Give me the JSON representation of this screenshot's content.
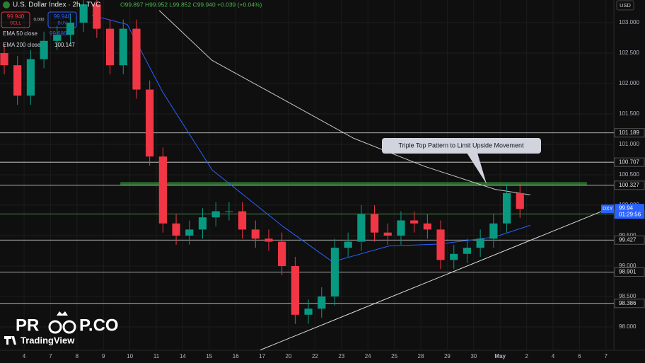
{
  "header": {
    "symbol": "U.S. Dollar Index · 2h · TVC",
    "ohlc": "O99.897 H99.952 L99.852 C99.940 +0.039 (+0.04%)",
    "sell_price": "99.940",
    "sell": "SELL",
    "buy_price": "99.940",
    "buy": "BUY",
    "spread": "0.000",
    "ema50_label": "EMA 50 close",
    "ema50_value": "99.686",
    "ema200_label": "EMA 200 close",
    "ema200_value": "100.147",
    "currency": "USD",
    "ticker": "DXY",
    "countdown": "01:29:56",
    "logo_left": "PR",
    "logo_right": "P.CO",
    "brand": "TradingView"
  },
  "chart_data": {
    "type": "candlestick",
    "annotation": "Triple Top Pattern to Limit Upside Movement",
    "up_color": "#089981",
    "down_color": "#f23645",
    "x": [
      -0.75,
      -0.25,
      0.25,
      0.75,
      1.25,
      1.75,
      2.25,
      2.75,
      3.25,
      3.75,
      4.25,
      4.75,
      5.25,
      5.75,
      6.25,
      6.75,
      7.25,
      7.75,
      8.25,
      8.75,
      9.25,
      9.75,
      10.25,
      10.75,
      11.25,
      11.75,
      12.25,
      12.75,
      13.25,
      13.75,
      14.25,
      14.75,
      15.25,
      15.75,
      16.25,
      16.75,
      17.25,
      17.75,
      18.25,
      18.75
    ],
    "open": [
      102.5,
      102.3,
      101.8,
      102.4,
      102.7,
      102.8,
      103.0,
      103.3,
      102.9,
      102.3,
      102.9,
      101.9,
      100.8,
      99.7,
      99.5,
      99.6,
      99.8,
      99.9,
      99.9,
      99.6,
      99.45,
      99.4,
      99.0,
      98.2,
      98.3,
      98.5,
      99.3,
      99.4,
      99.85,
      99.55,
      99.5,
      99.75,
      99.7,
      99.6,
      99.1,
      99.2,
      99.3,
      99.45,
      99.7,
      100.2
    ],
    "high": [
      102.65,
      102.45,
      102.55,
      102.85,
      102.95,
      103.15,
      103.45,
      103.45,
      103.05,
      103.05,
      103.05,
      102.05,
      100.95,
      99.85,
      99.75,
      99.95,
      100.05,
      100.05,
      100.05,
      99.75,
      99.6,
      99.55,
      99.15,
      98.45,
      98.65,
      99.45,
      99.55,
      100.0,
      100.0,
      99.7,
      99.9,
      99.9,
      99.85,
      99.75,
      99.35,
      99.45,
      99.6,
      99.85,
      100.35,
      100.35
    ],
    "low": [
      102.15,
      101.65,
      101.65,
      102.25,
      102.55,
      102.65,
      102.85,
      102.75,
      102.15,
      102.15,
      101.75,
      100.65,
      99.55,
      99.35,
      99.35,
      99.45,
      99.65,
      99.75,
      99.45,
      99.3,
      99.25,
      98.85,
      98.05,
      98.05,
      98.15,
      98.35,
      99.15,
      99.25,
      99.4,
      99.35,
      99.35,
      99.55,
      99.45,
      98.95,
      98.95,
      99.05,
      99.15,
      99.3,
      99.55,
      99.79
    ],
    "close": [
      102.3,
      101.8,
      102.4,
      102.7,
      102.8,
      103.0,
      103.3,
      102.9,
      102.3,
      102.9,
      101.9,
      100.8,
      99.7,
      99.5,
      99.6,
      99.8,
      99.9,
      99.9,
      99.6,
      99.45,
      99.4,
      99.0,
      98.2,
      98.3,
      98.5,
      99.3,
      99.4,
      99.85,
      99.55,
      99.5,
      99.75,
      99.7,
      99.6,
      99.1,
      99.2,
      99.3,
      99.45,
      99.7,
      100.2,
      99.94
    ],
    "series": [
      {
        "name": "EMA 50 close",
        "color": "#2962ff",
        "x": [
          2.57,
          3.9,
          5.24,
          7.11,
          9.79,
          11.66,
          13.8,
          15.67,
          17.81,
          19.14
        ],
        "values": [
          103.12,
          102.97,
          101.86,
          100.58,
          99.65,
          99.07,
          99.33,
          99.36,
          99.48,
          99.67
        ]
      },
      {
        "name": "EMA 200 close",
        "color": "#c8c8c8",
        "x": [
          5.11,
          7.11,
          9.79,
          12.46,
          15.13,
          17.81,
          19.14
        ],
        "values": [
          103.2,
          102.38,
          101.74,
          101.1,
          100.64,
          100.26,
          100.17
        ]
      }
    ],
    "levels": [
      101.189,
      100.707,
      100.327,
      99.427,
      98.901,
      98.386
    ],
    "support": 99.857,
    "support_color": "#4caf50",
    "zone": {
      "x": [
        3.64,
        21.28
      ],
      "values": [
        100.327,
        100.38
      ],
      "color": "#2e7d32"
    },
    "trendline": {
      "x": [
        8.93,
        22.3
      ],
      "values": [
        97.62,
        99.98
      ]
    },
    "last_price": 99.94,
    "last_price_color": "#2962ff",
    "xlim": [
      -0.91,
      22.3
    ],
    "ylim": [
      97.616,
      103.372
    ],
    "xticks": [
      {
        "value": 0,
        "label": "4"
      },
      {
        "value": 1,
        "label": "7"
      },
      {
        "value": 2,
        "label": "8"
      },
      {
        "value": 3,
        "label": "9"
      },
      {
        "value": 4,
        "label": "10"
      },
      {
        "value": 5,
        "label": "11"
      },
      {
        "value": 6,
        "label": "14"
      },
      {
        "value": 7,
        "label": "15"
      },
      {
        "value": 8,
        "label": "16"
      },
      {
        "value": 9,
        "label": "17"
      },
      {
        "value": 10,
        "label": "20"
      },
      {
        "value": 11,
        "label": "22"
      },
      {
        "value": 12,
        "label": "23"
      },
      {
        "value": 13,
        "label": "24"
      },
      {
        "value": 14,
        "label": "25"
      },
      {
        "value": 15,
        "label": "28"
      },
      {
        "value": 16,
        "label": "29"
      },
      {
        "value": 17,
        "label": "30"
      },
      {
        "value": 18,
        "label": "May"
      },
      {
        "value": 19,
        "label": "2"
      },
      {
        "value": 20,
        "label": "4"
      },
      {
        "value": 21,
        "label": "6"
      },
      {
        "value": 22,
        "label": "7"
      }
    ],
    "yticks": [
      {
        "value": 98,
        "label": "98.000"
      },
      {
        "value": 98.5,
        "label": "98.500"
      },
      {
        "value": 99,
        "label": "99.000"
      },
      {
        "value": 99.5,
        "label": "99.500"
      },
      {
        "value": 100,
        "label": "100.000"
      },
      {
        "value": 100.5,
        "label": "100.500"
      },
      {
        "value": 101,
        "label": "101.000"
      },
      {
        "value": 101.5,
        "label": "101.500"
      },
      {
        "value": 102,
        "label": "102.000"
      },
      {
        "value": 102.5,
        "label": "102.500"
      },
      {
        "value": 103,
        "label": "103.000"
      }
    ]
  }
}
